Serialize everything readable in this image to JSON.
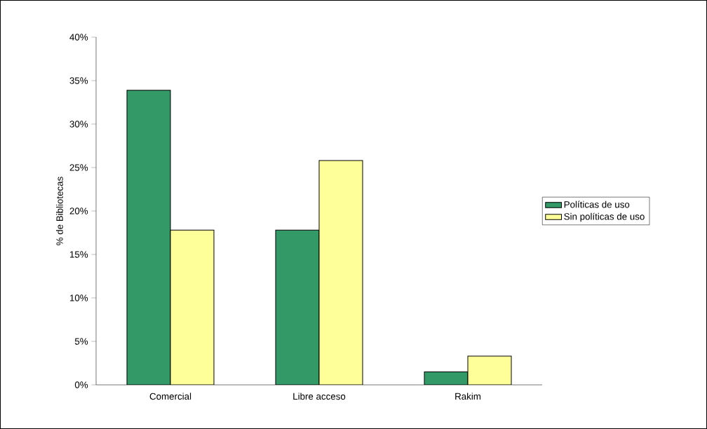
{
  "chart_data": {
    "type": "bar",
    "ylabel": "% de Bibliotecas",
    "categories": [
      "Comercial",
      "Libre acceso",
      "Rakim"
    ],
    "series": [
      {
        "name": "Políticas de uso",
        "color": "#339966",
        "values": [
          33.9,
          17.8,
          1.5
        ]
      },
      {
        "name": "Sin políticas de uso",
        "color": "#ffff99",
        "values": [
          17.8,
          25.8,
          3.3
        ]
      }
    ],
    "ylim": [
      0,
      40
    ],
    "yticks": [
      {
        "value": 0,
        "label": "0%"
      },
      {
        "value": 5,
        "label": "5%"
      },
      {
        "value": 10,
        "label": "10%"
      },
      {
        "value": 15,
        "label": "15%"
      },
      {
        "value": 20,
        "label": "20%"
      },
      {
        "value": 25,
        "label": "25%"
      },
      {
        "value": 30,
        "label": "30%"
      },
      {
        "value": 35,
        "label": "35%"
      },
      {
        "value": 40,
        "label": "40%"
      }
    ],
    "grid": false,
    "legend": "right"
  }
}
